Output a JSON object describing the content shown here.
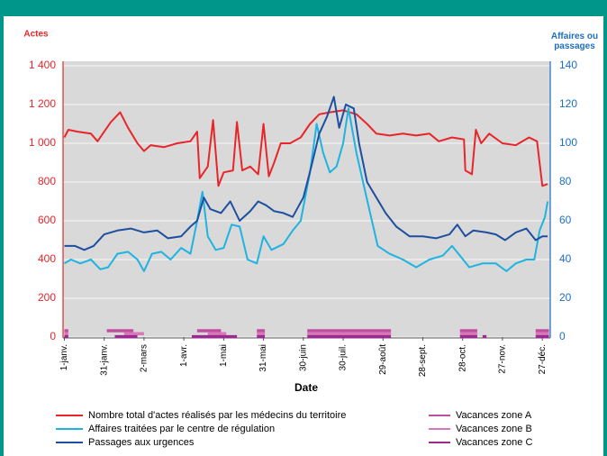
{
  "chart_data": {
    "type": "line",
    "y_label": "Actes",
    "y2_label": "Affaires ou passages",
    "x_label": "Date",
    "xlim": [
      -1,
      366
    ],
    "xticks": [
      {
        "value": 0,
        "label": "1-janv."
      },
      {
        "value": 30,
        "label": "31-janv."
      },
      {
        "value": 60,
        "label": "2-mars"
      },
      {
        "value": 90,
        "label": "1-avr."
      },
      {
        "value": 120,
        "label": "1-mai"
      },
      {
        "value": 150,
        "label": "31-mai"
      },
      {
        "value": 180,
        "label": "30-juin"
      },
      {
        "value": 210,
        "label": "30-juil."
      },
      {
        "value": 240,
        "label": "29-août"
      },
      {
        "value": 270,
        "label": "28-sept."
      },
      {
        "value": 300,
        "label": "28-oct."
      },
      {
        "value": 330,
        "label": "27-nov."
      },
      {
        "value": 360,
        "label": "27-déc."
      }
    ],
    "ylim": [
      0,
      1400
    ],
    "yticks": [
      0,
      200,
      400,
      600,
      800,
      {
        "value": 1000,
        "label": "1 000"
      },
      {
        "value": 1200,
        "label": "1 200"
      },
      {
        "value": 1400,
        "label": "1 400"
      }
    ],
    "y2lim": [
      0,
      140
    ],
    "y2ticks": [
      0,
      20,
      40,
      60,
      80,
      100,
      120,
      140
    ],
    "grid": true,
    "series": [
      {
        "name": "Nombre total d'actes réalisés par les médecins du territoire",
        "color": "#e8262a",
        "x": [
          0,
          3,
          10,
          20,
          25,
          30,
          35,
          42,
          48,
          55,
          60,
          65,
          75,
          85,
          95,
          100,
          102,
          108,
          112,
          116,
          120,
          127,
          130,
          134,
          140,
          146,
          150,
          154,
          158,
          163,
          170,
          178,
          185,
          192,
          200,
          210,
          220,
          228,
          235,
          245,
          255,
          265,
          275,
          282,
          292,
          301,
          302,
          307,
          310,
          314,
          320,
          330,
          340,
          350,
          356,
          360,
          364
        ],
        "values": [
          1030,
          1070,
          1060,
          1050,
          1010,
          1060,
          1110,
          1160,
          1080,
          1000,
          960,
          990,
          980,
          1000,
          1010,
          1060,
          820,
          880,
          1120,
          780,
          850,
          860,
          1110,
          860,
          880,
          840,
          1100,
          830,
          900,
          1000,
          1000,
          1030,
          1100,
          1150,
          1160,
          1170,
          1150,
          1100,
          1050,
          1040,
          1050,
          1040,
          1050,
          1010,
          1030,
          1020,
          860,
          840,
          1070,
          1000,
          1050,
          1000,
          990,
          1030,
          1010,
          780,
          790
        ]
      },
      {
        "name": "Affaires traitées par le centre de régulation",
        "color": "#1fb3e0",
        "axis": "y2",
        "x": [
          0,
          5,
          12,
          20,
          27,
          33,
          40,
          48,
          55,
          60,
          66,
          73,
          80,
          88,
          95,
          100,
          104,
          108,
          114,
          120,
          126,
          132,
          138,
          145,
          150,
          156,
          165,
          172,
          178,
          185,
          190,
          195,
          200,
          205,
          210,
          214,
          220,
          225,
          230,
          236,
          245,
          255,
          265,
          275,
          285,
          292,
          298,
          305,
          315,
          325,
          333,
          340,
          348,
          354,
          358,
          362,
          364
        ],
        "values": [
          38,
          40,
          38,
          40,
          35,
          36,
          43,
          44,
          40,
          34,
          43,
          44,
          40,
          46,
          43,
          60,
          75,
          52,
          45,
          46,
          58,
          57,
          40,
          38,
          52,
          45,
          48,
          55,
          60,
          85,
          110,
          95,
          85,
          88,
          100,
          118,
          95,
          80,
          65,
          47,
          43,
          40,
          36,
          40,
          42,
          47,
          42,
          36,
          38,
          38,
          34,
          38,
          40,
          40,
          55,
          62,
          70
        ]
      },
      {
        "name": "Passages aux urgences",
        "color": "#1d4fa0",
        "axis": "y2",
        "x": [
          0,
          8,
          15,
          22,
          30,
          40,
          50,
          60,
          70,
          78,
          88,
          95,
          100,
          105,
          110,
          118,
          125,
          132,
          140,
          146,
          152,
          158,
          165,
          172,
          180,
          186,
          192,
          198,
          203,
          207,
          212,
          218,
          222,
          228,
          235,
          242,
          250,
          260,
          270,
          280,
          290,
          296,
          302,
          308,
          318,
          325,
          332,
          340,
          348,
          355,
          360,
          364
        ],
        "values": [
          47,
          47,
          45,
          47,
          53,
          55,
          56,
          54,
          55,
          51,
          52,
          57,
          60,
          72,
          66,
          64,
          70,
          60,
          65,
          70,
          68,
          65,
          64,
          62,
          72,
          88,
          105,
          114,
          124,
          108,
          120,
          118,
          100,
          80,
          72,
          64,
          57,
          52,
          52,
          51,
          53,
          58,
          52,
          55,
          54,
          53,
          50,
          54,
          56,
          50,
          52,
          52
        ]
      }
    ],
    "vacances": [
      {
        "name": "Vacances zone A",
        "color": "#c0509e",
        "periods": [
          [
            0,
            3
          ],
          [
            32,
            52
          ],
          [
            100,
            118
          ],
          [
            145,
            151
          ],
          [
            183,
            246
          ],
          [
            298,
            311
          ],
          [
            355,
            365
          ]
        ]
      },
      {
        "name": "Vacances zone B",
        "color": "#d978b8",
        "periods": [
          [
            0,
            3
          ],
          [
            45,
            60
          ],
          [
            108,
            122
          ],
          [
            145,
            151
          ],
          [
            183,
            246
          ],
          [
            298,
            311
          ],
          [
            355,
            365
          ]
        ]
      },
      {
        "name": "Vacances zone C",
        "color": "#9b2a90",
        "periods": [
          [
            0,
            3
          ],
          [
            38,
            55
          ],
          [
            96,
            130
          ],
          [
            145,
            151
          ],
          [
            183,
            246
          ],
          [
            298,
            311
          ],
          [
            315,
            318
          ],
          [
            355,
            365
          ]
        ]
      }
    ]
  }
}
